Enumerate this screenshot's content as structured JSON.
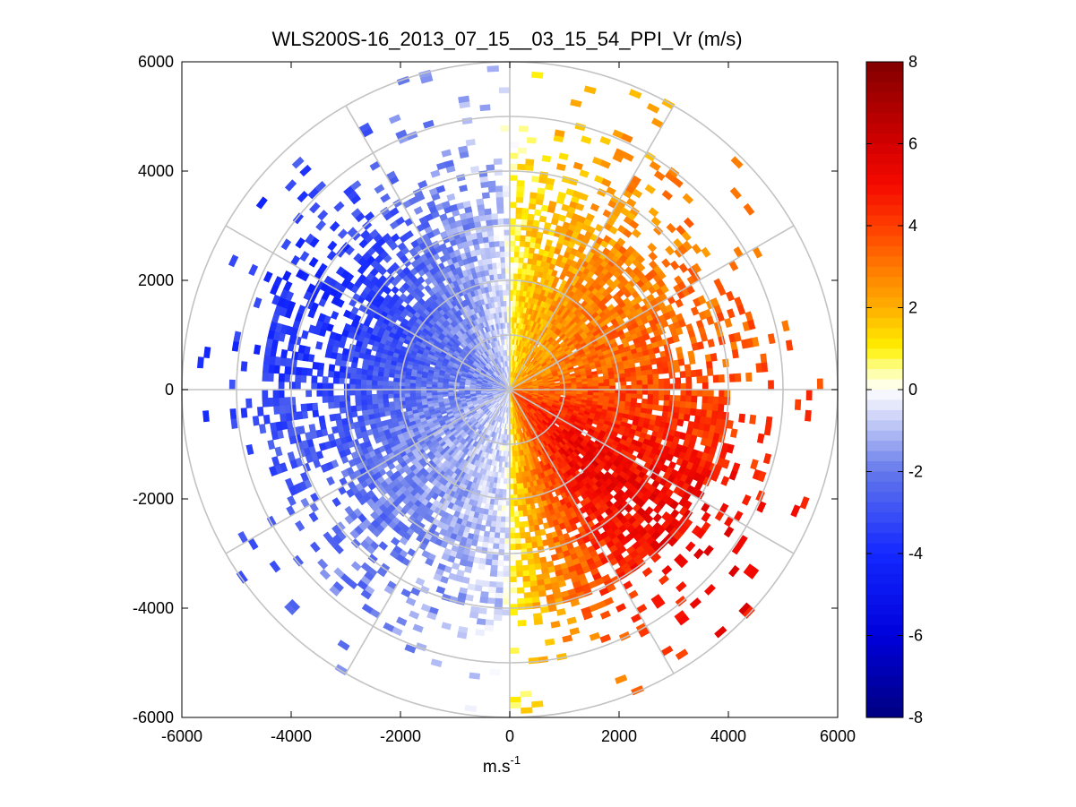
{
  "chart_data": {
    "type": "heatmap",
    "subtype": "polar-ppi",
    "title": "WLS200S-16_2013_07_15__03_15_54_PPI_Vr (m/s)",
    "xlabel_base": "m.s",
    "xlabel_sup": "-1",
    "ylabel": "",
    "xlim": [
      -6000,
      6000
    ],
    "ylim": [
      -6000,
      6000
    ],
    "x_ticks": [
      "-6000",
      "-4000",
      "-2000",
      "0",
      "2000",
      "4000",
      "6000"
    ],
    "y_ticks": [
      "6000",
      "4000",
      "2000",
      "0",
      "-2000",
      "-4000",
      "-6000"
    ],
    "range_rings_m": [
      1000,
      2000,
      3000,
      4000,
      5000,
      6000
    ],
    "radial_lines_deg": [
      0,
      30,
      60,
      90,
      120,
      150,
      180,
      210,
      240,
      270,
      300,
      330
    ],
    "grid": true,
    "colorbar": {
      "position": "right",
      "vmin": -8,
      "vmax": 8,
      "ticks": [
        "8",
        "6",
        "4",
        "2",
        "0",
        "-2",
        "-4",
        "-6",
        "-8"
      ],
      "colormap": "blue-white-yellow-red"
    },
    "velocity_field_description": {
      "azimuth_step_deg": 2,
      "range_gate_m": 100,
      "max_range_m": 6000,
      "sectors": [
        {
          "azimuth_from_deg": 0,
          "azimuth_to_deg": 180,
          "sign": "positive",
          "peak_vr": 6,
          "peak_azimuth_deg": 140
        },
        {
          "azimuth_from_deg": 180,
          "azimuth_to_deg": 360,
          "sign": "negative",
          "peak_vr": -4,
          "peak_azimuth_deg": 300
        }
      ]
    }
  }
}
